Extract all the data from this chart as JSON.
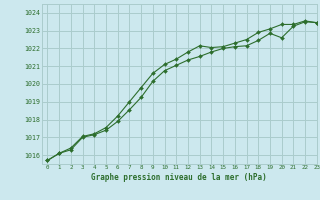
{
  "title": "Graphe pression niveau de la mer (hPa)",
  "bg_color": "#cce8ee",
  "grid_color": "#aacccc",
  "line_color": "#2d6e2d",
  "marker_color": "#2d6e2d",
  "xlim": [
    -0.5,
    23
  ],
  "ylim": [
    1015.5,
    1024.5
  ],
  "yticks": [
    1016,
    1017,
    1018,
    1019,
    1020,
    1021,
    1022,
    1023,
    1024
  ],
  "xticks": [
    0,
    1,
    2,
    3,
    4,
    5,
    6,
    7,
    8,
    9,
    10,
    11,
    12,
    13,
    14,
    15,
    16,
    17,
    18,
    19,
    20,
    21,
    22,
    23
  ],
  "series1_x": [
    0,
    1,
    2,
    3,
    4,
    5,
    6,
    7,
    8,
    9,
    10,
    11,
    12,
    13,
    14,
    15,
    16,
    17,
    18,
    19,
    20,
    21,
    22,
    23
  ],
  "series1_y": [
    1015.7,
    1016.1,
    1016.3,
    1017.0,
    1017.15,
    1017.4,
    1017.9,
    1018.55,
    1019.25,
    1020.15,
    1020.75,
    1021.05,
    1021.35,
    1021.55,
    1021.8,
    1022.0,
    1022.1,
    1022.15,
    1022.45,
    1022.85,
    1022.6,
    1023.25,
    1023.5,
    1023.45
  ],
  "series2_x": [
    0,
    1,
    2,
    3,
    4,
    5,
    6,
    7,
    8,
    9,
    10,
    11,
    12,
    13,
    14,
    15,
    16,
    17,
    18,
    19,
    20,
    21,
    22,
    23
  ],
  "series2_y": [
    1015.7,
    1016.1,
    1016.4,
    1017.05,
    1017.2,
    1017.55,
    1018.2,
    1019.0,
    1019.8,
    1020.6,
    1021.1,
    1021.4,
    1021.8,
    1022.15,
    1022.05,
    1022.1,
    1022.3,
    1022.5,
    1022.9,
    1023.1,
    1023.35,
    1023.35,
    1023.55,
    1023.45
  ]
}
